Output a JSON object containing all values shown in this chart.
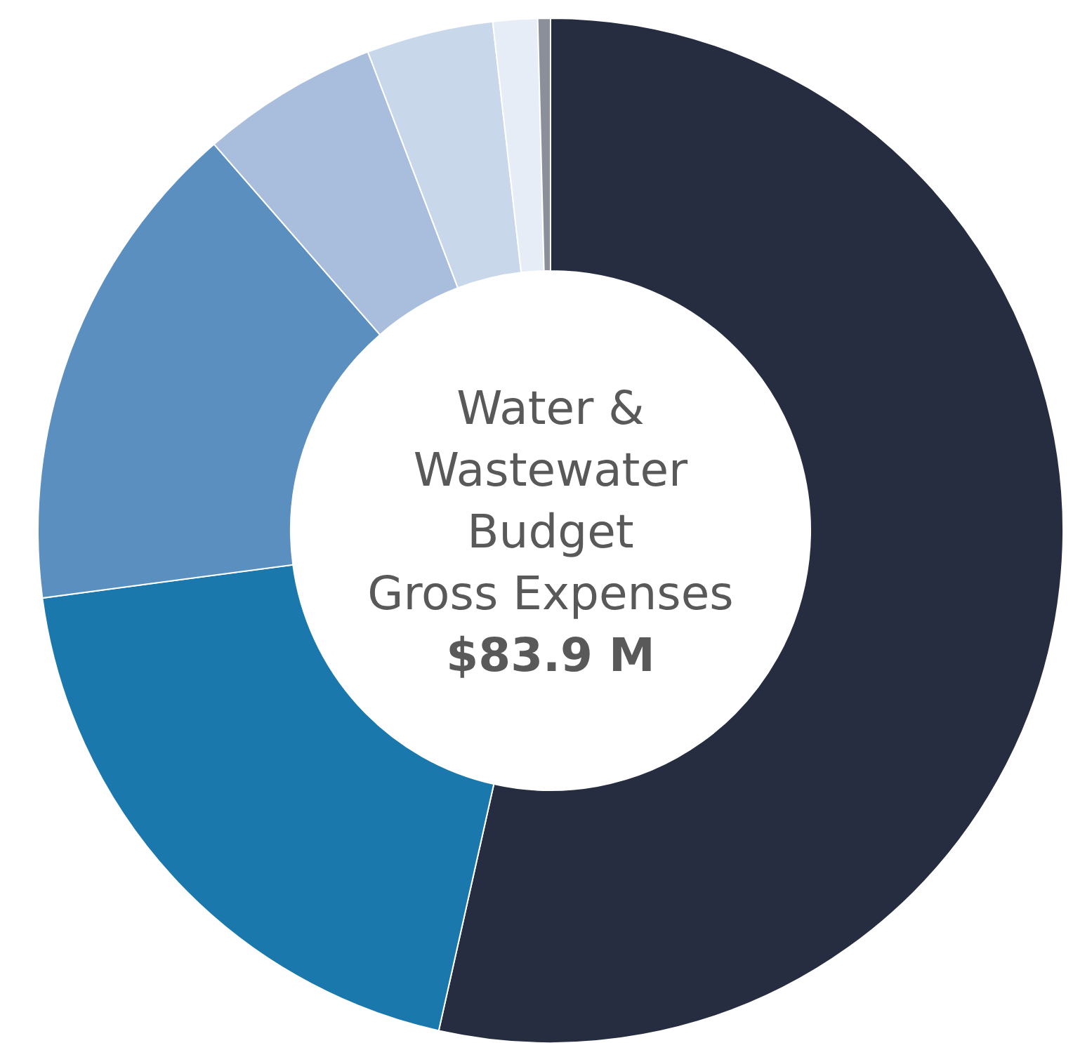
{
  "chart_data": {
    "type": "donut",
    "title": "Water & Wastewater Budget",
    "subtitle": "Gross Expenses",
    "annotations": [
      "$83.9 M"
    ],
    "categories": [
      null,
      null,
      null,
      null,
      null,
      null,
      null
    ],
    "values": [
      53.5,
      19.4,
      15.7,
      5.6,
      4.0,
      1.4,
      0.4
    ],
    "colors": [
      "#272d40",
      "#1a78ad",
      "#5b8fc0",
      "#a9bedc",
      "#c9d7ea",
      "#e6edf7",
      "#8a8f99"
    ]
  }
}
